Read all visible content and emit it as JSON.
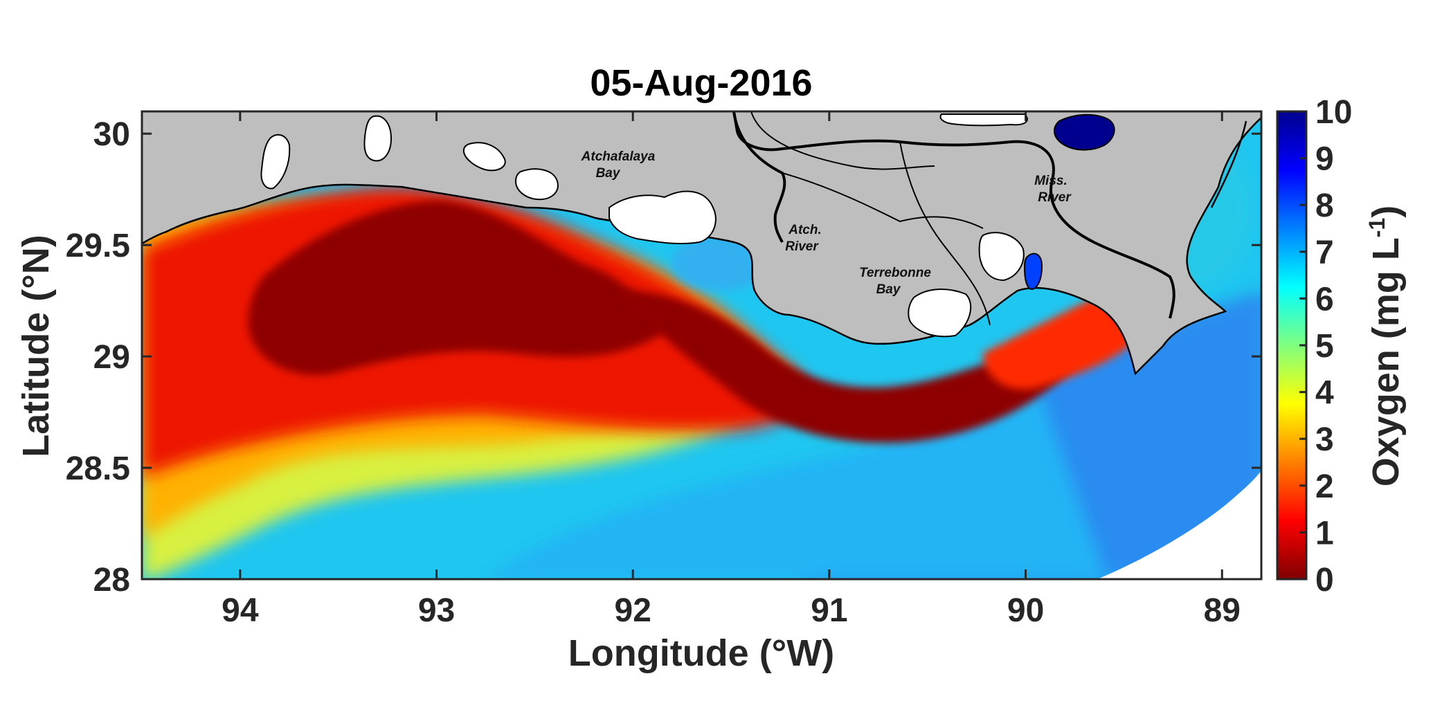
{
  "title": "05-Aug-2016",
  "map": {
    "xlabel": "Longitude (°W)",
    "ylabel": "Latitude (°N)",
    "xlim": [
      94.5,
      88.8
    ],
    "ylim": [
      28.0,
      30.1
    ],
    "xticks": [
      "94",
      "93",
      "92",
      "91",
      "90",
      "89"
    ],
    "yticks": [
      "28",
      "28.5",
      "29",
      "29.5",
      "30"
    ],
    "land_color": "#bebebe",
    "places": [
      "Atchafalaya Bay",
      "Atch. River",
      "Terrebonne Bay",
      "Miss. River"
    ]
  },
  "colorbar": {
    "label": "Oxygen (mg L",
    "label_sup": "-1",
    "label_end": ")",
    "ticks": [
      "0",
      "1",
      "2",
      "3",
      "4",
      "5",
      "6",
      "7",
      "8",
      "9",
      "10"
    ],
    "range": [
      0,
      10
    ],
    "colormap": "jet-reversed",
    "stops": [
      "#7f0000",
      "#ff0000",
      "#ff8000",
      "#ffff00",
      "#80ff80",
      "#00ffff",
      "#0080ff",
      "#0000ff",
      "#00008f"
    ]
  }
}
